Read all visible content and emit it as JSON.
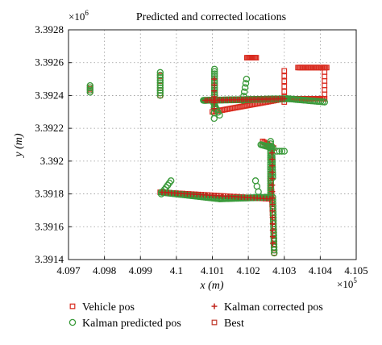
{
  "chart_data": {
    "type": "scatter",
    "title": "Predicted and corrected locations",
    "xlabel": "x (m)",
    "ylabel": "y (m)",
    "x_multiplier": "×10",
    "x_multiplier_exp": "5",
    "y_multiplier": "×10",
    "y_multiplier_exp": "6",
    "xlim": [
      4.097,
      4.105
    ],
    "ylim": [
      3.3914,
      3.3928
    ],
    "x_ticks": [
      "4.097",
      "4.098",
      "4.099",
      "4.1",
      "4.101",
      "4.102",
      "4.103",
      "4.104",
      "4.105"
    ],
    "y_ticks": [
      "3.3914",
      "3.3916",
      "3.3918",
      "3.392",
      "3.3922",
      "3.3924",
      "3.3926",
      "3.3928"
    ],
    "grid": true,
    "legend_placement": "bottom",
    "series": [
      {
        "name": "Vehicle pos",
        "marker": "square-open",
        "color": "#d92b1f",
        "segments": [
          {
            "from": [
              4.10196,
              3.39263
            ],
            "to": [
              4.10222,
              3.39263
            ],
            "n": 10
          },
          {
            "from": [
              4.10338,
              3.39257
            ],
            "to": [
              4.10418,
              3.39257
            ],
            "n": 26
          },
          {
            "from": [
              4.10412,
              3.39257
            ],
            "to": [
              4.10412,
              3.39238
            ],
            "n": 8
          },
          {
            "from": [
              4.10308,
              3.39238
            ],
            "to": [
              4.10412,
              3.39238
            ],
            "n": 30
          },
          {
            "from": [
              4.103,
              3.39255
            ],
            "to": [
              4.103,
              3.39236
            ],
            "n": 7
          },
          {
            "from": [
              4.0976,
              3.39245
            ],
            "to": [
              4.0976,
              3.39243
            ],
            "n": 3
          },
          {
            "from": [
              4.09955,
              3.39252
            ],
            "to": [
              4.09955,
              3.3924
            ],
            "n": 5
          },
          {
            "from": [
              4.101,
              3.3923
            ],
            "to": [
              4.103,
              3.39238
            ],
            "n": 45
          },
          {
            "from": [
              4.09955,
              3.39181
            ],
            "to": [
              4.10262,
              3.39177
            ],
            "n": 50
          },
          {
            "from": [
              4.10262,
              3.39195
            ],
            "to": [
              4.10272,
              3.39144
            ],
            "n": 20
          },
          {
            "from": [
              4.1024,
              3.39212
            ],
            "to": [
              4.1027,
              3.39208
            ],
            "n": 8
          }
        ]
      },
      {
        "name": "Kalman predicted pos",
        "marker": "circle-open",
        "color": "#3a9a3a",
        "segments": [
          {
            "from": [
              4.0976,
              3.39246
            ],
            "to": [
              4.0976,
              3.39242
            ],
            "n": 4
          },
          {
            "from": [
              4.09955,
              3.39254
            ],
            "to": [
              4.09955,
              3.3924
            ],
            "n": 10
          },
          {
            "from": [
              4.10075,
              3.39237
            ],
            "to": [
              4.1031,
              3.39238
            ],
            "n": 100
          },
          {
            "from": [
              4.10106,
              3.39256
            ],
            "to": [
              4.10106,
              3.39232
            ],
            "n": 18
          },
          {
            "from": [
              4.101,
              3.39237
            ],
            "to": [
              4.1012,
              3.39228
            ],
            "n": 6
          },
          {
            "from": [
              4.10185,
              3.39237
            ],
            "to": [
              4.10195,
              3.3925
            ],
            "n": 6
          },
          {
            "from": [
              4.1031,
              3.39238
            ],
            "to": [
              4.10412,
              3.39236
            ],
            "n": 20
          },
          {
            "from": [
              4.10105,
              3.39226
            ],
            "to": [
              4.10105,
              3.39236
            ],
            "n": 4
          },
          {
            "from": [
              4.09985,
              3.39188
            ],
            "to": [
              4.09958,
              3.3918
            ],
            "n": 7
          },
          {
            "from": [
              4.09958,
              3.39181
            ],
            "to": [
              4.1012,
              3.39177
            ],
            "n": 45
          },
          {
            "from": [
              4.1012,
              3.39177
            ],
            "to": [
              4.10262,
              3.39178
            ],
            "n": 40
          },
          {
            "from": [
              4.1022,
              3.39188
            ],
            "to": [
              4.10232,
              3.39178
            ],
            "n": 4
          },
          {
            "from": [
              4.10235,
              3.3921
            ],
            "to": [
              4.10268,
              3.39208
            ],
            "n": 10
          },
          {
            "from": [
              4.10262,
              3.39212
            ],
            "to": [
              4.10262,
              3.39178
            ],
            "n": 25
          },
          {
            "from": [
              4.10266,
              3.39204
            ],
            "to": [
              4.10268,
              3.3919
            ],
            "n": 10
          },
          {
            "from": [
              4.10268,
              3.39178
            ],
            "to": [
              4.10272,
              3.39144
            ],
            "n": 20
          },
          {
            "from": [
              4.1028,
              3.39206
            ],
            "to": [
              4.103,
              3.39206
            ],
            "n": 4
          }
        ]
      },
      {
        "name": "Kalman corrected pos",
        "marker": "plus",
        "color": "#c0231a",
        "segments": [
          {
            "from": [
              4.1008,
              3.39237
            ],
            "to": [
              4.103,
              3.39238
            ],
            "n": 40
          },
          {
            "from": [
              4.0996,
              3.39181
            ],
            "to": [
              4.1026,
              3.39177
            ],
            "n": 35
          },
          {
            "from": [
              4.10266,
              3.39205
            ],
            "to": [
              4.10268,
              3.3915
            ],
            "n": 15
          },
          {
            "from": [
              4.10105,
              3.3925
            ],
            "to": [
              4.10105,
              3.39232
            ],
            "n": 6
          }
        ]
      },
      {
        "name": "Best",
        "marker": "square-open",
        "color": "#c0392b",
        "segments": []
      }
    ]
  }
}
